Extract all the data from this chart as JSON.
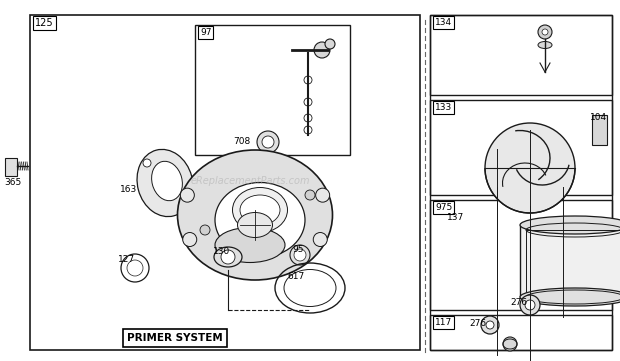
{
  "bg_color": "#ffffff",
  "lc": "#1a1a1a",
  "watermark": "eReplacementParts.com",
  "figsize": [
    6.2,
    3.61
  ],
  "dpi": 100
}
